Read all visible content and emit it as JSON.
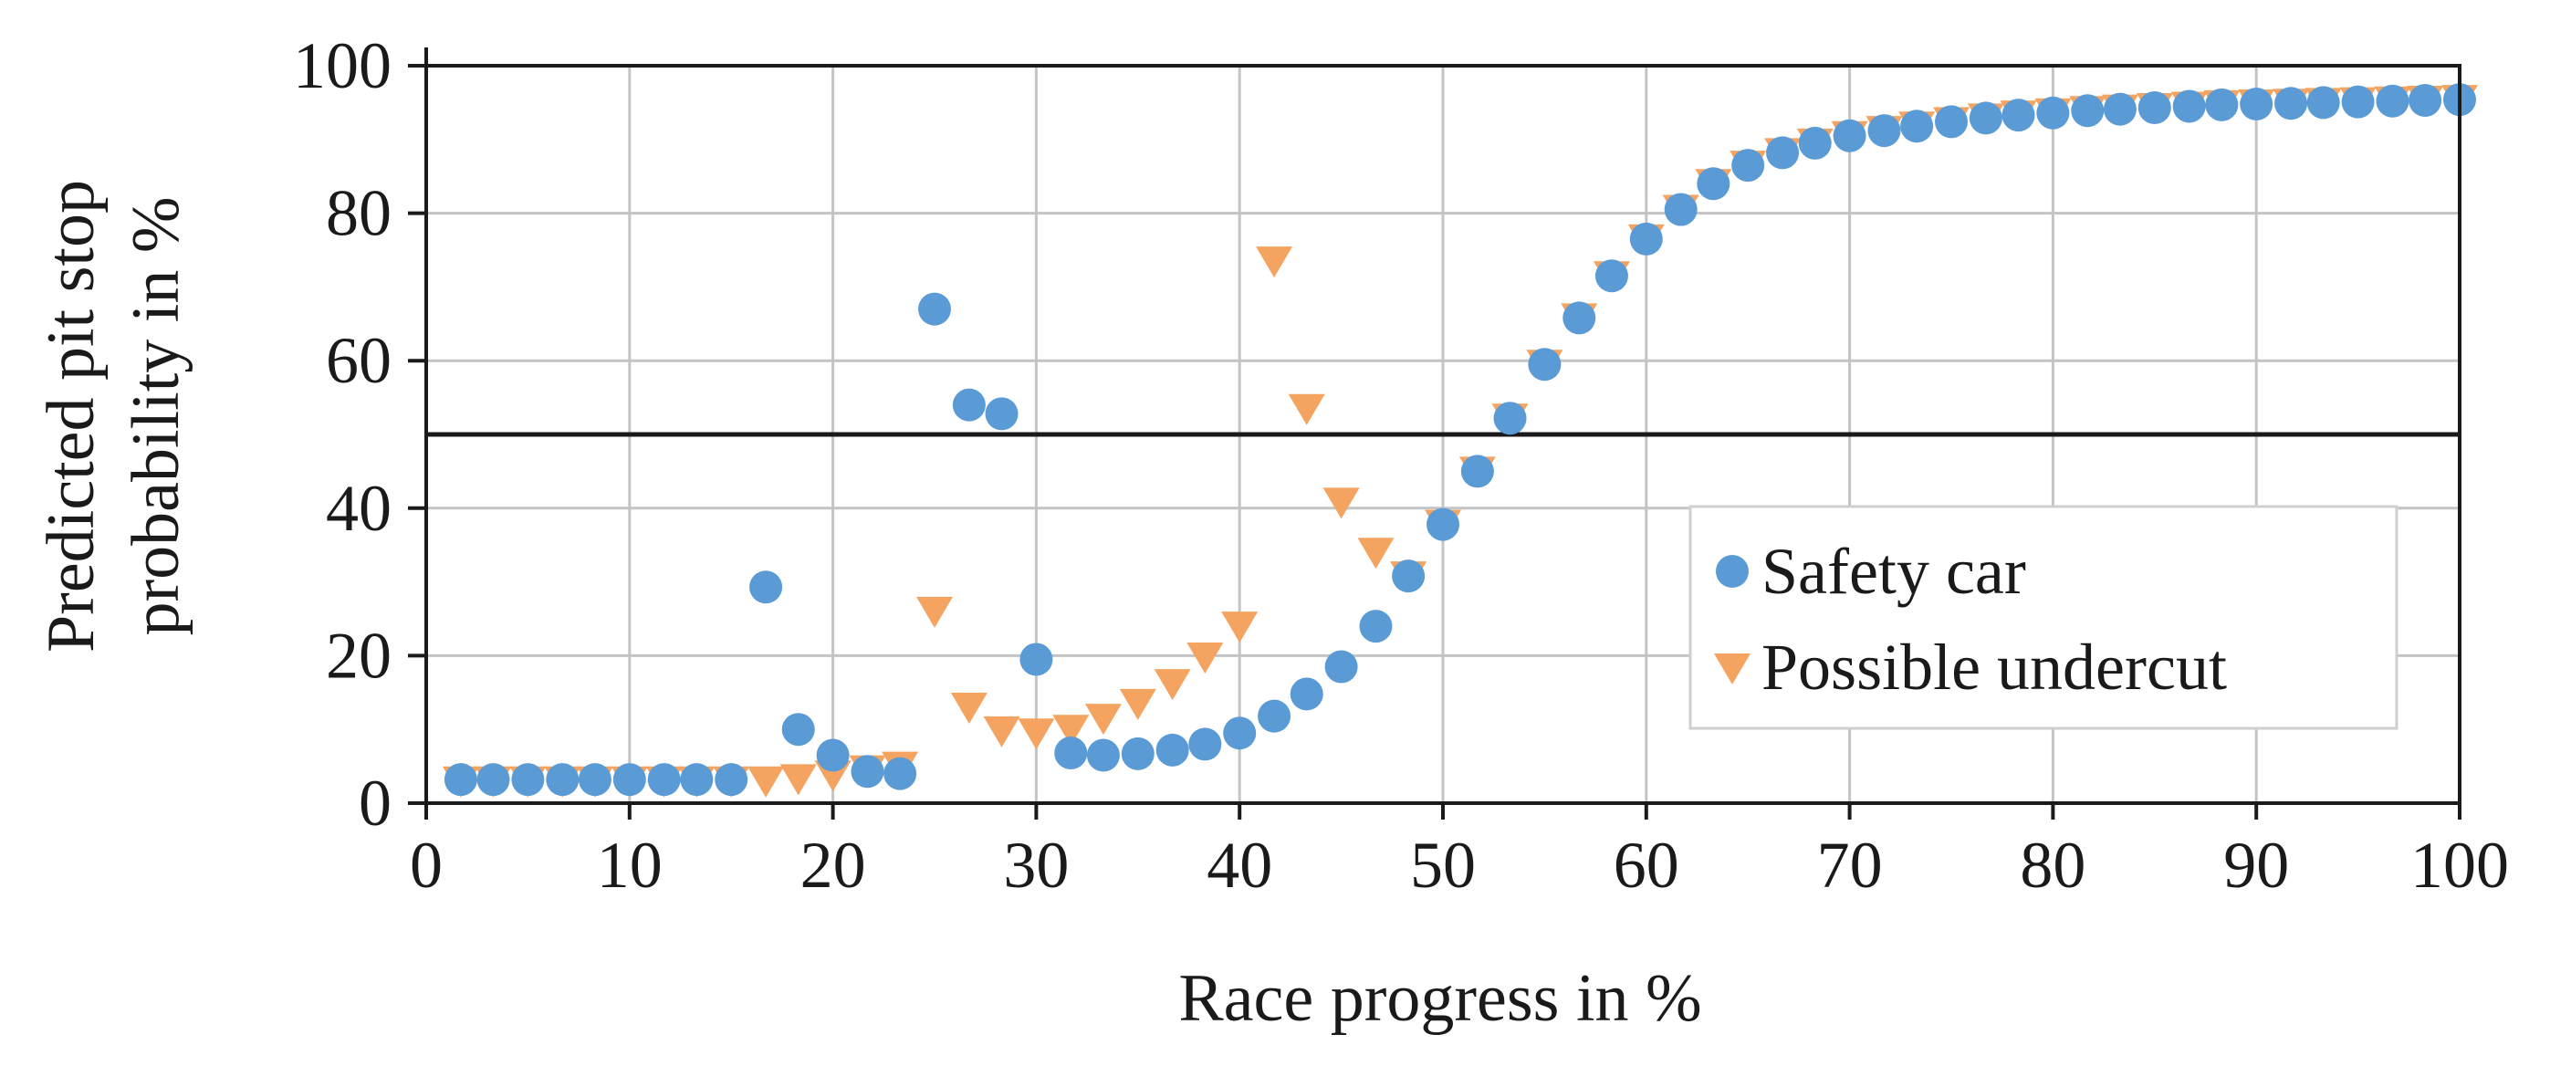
{
  "chart_data": {
    "type": "scatter",
    "title": "",
    "xlabel": "Race progress in %",
    "ylabel_lines": [
      "Predicted pit stop",
      "probability in %"
    ],
    "xlim": [
      0,
      100
    ],
    "ylim": [
      0,
      100
    ],
    "x_ticks": [
      0,
      10,
      20,
      30,
      40,
      50,
      60,
      70,
      80,
      90,
      100
    ],
    "y_ticks": [
      0,
      20,
      40,
      60,
      80,
      100
    ],
    "x_tick_labels": [
      "0",
      "10",
      "20",
      "30",
      "40",
      "50",
      "60",
      "70",
      "80",
      "90",
      "100"
    ],
    "y_tick_labels": [
      "0",
      "20",
      "40",
      "60",
      "80",
      "100"
    ],
    "grid": true,
    "threshold_line": 50,
    "legend_position": "center-right",
    "series": [
      {
        "name": "Safety car",
        "marker": "circle",
        "color": "#5b9bd5",
        "x": [
          1.7,
          3.3,
          5.0,
          6.7,
          8.3,
          10.0,
          11.7,
          13.3,
          15.0,
          16.7,
          18.3,
          20.0,
          21.7,
          23.3,
          25.0,
          26.7,
          28.3,
          30.0,
          31.7,
          33.3,
          35.0,
          36.7,
          38.3,
          40.0,
          41.7,
          43.3,
          45.0,
          46.7,
          48.3,
          50.0,
          51.7,
          53.3,
          55.0,
          56.7,
          58.3,
          60.0,
          61.7,
          63.3,
          65.0,
          66.7,
          68.3,
          70.0,
          71.7,
          73.3,
          75.0,
          76.7,
          78.3,
          80.0,
          81.7,
          83.3,
          85.0,
          86.7,
          88.3,
          90.0,
          91.7,
          93.3,
          95.0,
          96.7,
          98.3,
          100.0
        ],
        "values": [
          3.2,
          3.2,
          3.2,
          3.2,
          3.2,
          3.2,
          3.2,
          3.2,
          3.2,
          29.3,
          10.0,
          6.5,
          4.3,
          4.0,
          67.0,
          54.0,
          52.8,
          19.5,
          6.8,
          6.5,
          6.7,
          7.2,
          8.0,
          9.5,
          11.8,
          14.8,
          18.5,
          24.0,
          30.8,
          37.8,
          45.0,
          52.2,
          59.5,
          65.8,
          71.5,
          76.5,
          80.5,
          84.0,
          86.5,
          88.2,
          89.5,
          90.5,
          91.2,
          91.8,
          92.4,
          92.9,
          93.3,
          93.6,
          93.9,
          94.1,
          94.3,
          94.5,
          94.7,
          94.8,
          94.9,
          95.0,
          95.1,
          95.2,
          95.3,
          95.4
        ]
      },
      {
        "name": "Possible undercut",
        "marker": "triangle-down",
        "color": "#f4a460",
        "x": [
          1.7,
          3.3,
          5.0,
          6.7,
          8.3,
          10.0,
          11.7,
          13.3,
          15.0,
          16.7,
          18.3,
          20.0,
          21.7,
          23.3,
          25.0,
          26.7,
          28.3,
          30.0,
          31.7,
          33.3,
          35.0,
          36.7,
          38.3,
          40.0,
          41.7,
          43.3,
          45.0,
          46.7,
          48.3,
          50.0,
          51.7,
          53.3,
          55.0,
          56.7,
          58.3,
          60.0,
          61.7,
          63.3,
          65.0,
          66.7,
          68.3,
          70.0,
          71.7,
          73.3,
          75.0,
          76.7,
          78.3,
          80.0,
          81.7,
          83.3,
          85.0,
          86.7,
          88.3,
          90.0,
          91.7,
          93.3,
          95.0,
          96.7,
          98.3,
          100.0
        ],
        "values": [
          3.0,
          3.0,
          3.0,
          3.0,
          3.0,
          3.0,
          3.0,
          3.0,
          3.0,
          3.0,
          3.3,
          3.8,
          4.5,
          5.0,
          26.0,
          13.0,
          9.8,
          9.5,
          10.0,
          11.5,
          13.5,
          16.2,
          19.8,
          24.0,
          73.5,
          53.5,
          40.8,
          34.0,
          30.8,
          37.8,
          45.0,
          52.2,
          59.5,
          65.8,
          71.5,
          76.5,
          80.5,
          84.0,
          86.5,
          88.2,
          89.5,
          90.5,
          91.2,
          91.8,
          92.4,
          92.9,
          93.3,
          93.6,
          93.9,
          94.1,
          94.3,
          94.5,
          94.7,
          94.8,
          94.9,
          95.0,
          95.1,
          95.2,
          95.3,
          95.4
        ]
      }
    ]
  }
}
